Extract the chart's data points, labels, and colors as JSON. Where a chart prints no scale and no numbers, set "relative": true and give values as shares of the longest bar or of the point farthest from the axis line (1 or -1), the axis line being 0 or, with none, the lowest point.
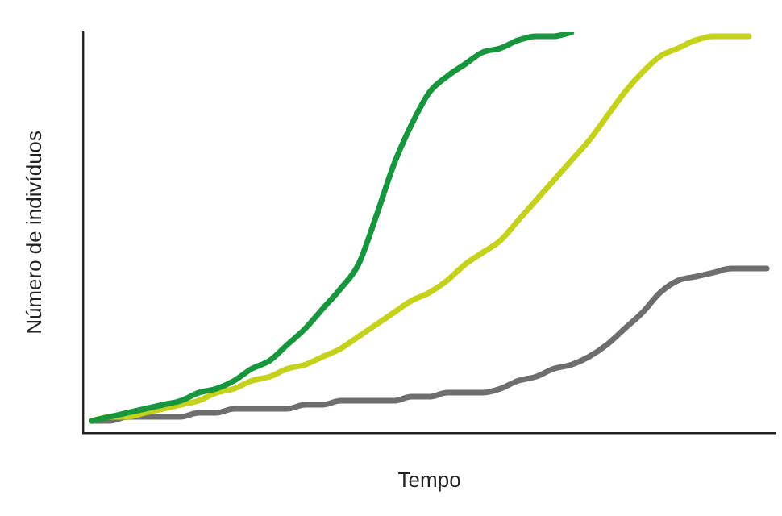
{
  "chart_data": {
    "type": "line",
    "relative": true,
    "xlabel": "Tempo",
    "ylabel": "Número de indivíduos",
    "grid": false,
    "legend": false,
    "marker": "none",
    "line_style": "solid",
    "categories": [
      null,
      null,
      null,
      null,
      null,
      null,
      null,
      null,
      null,
      null,
      null,
      null,
      null,
      null,
      null,
      null,
      null,
      null,
      null,
      null,
      null,
      null,
      null,
      null,
      null,
      null,
      null,
      null,
      null,
      null,
      null,
      null,
      null,
      null,
      null,
      null,
      null,
      null,
      null
    ],
    "series": [
      {
        "color": "#17963e",
        "values": [
          0.03,
          0.04,
          0.05,
          0.06,
          0.07,
          0.08,
          0.1,
          0.11,
          0.13,
          0.16,
          0.18,
          0.22,
          0.26,
          0.31,
          0.36,
          0.42,
          0.54,
          0.67,
          0.77,
          0.85,
          0.89,
          0.92,
          0.95,
          0.96,
          0.98,
          0.99,
          0.99,
          1,
          null,
          null,
          null,
          null,
          null,
          null,
          null,
          null,
          null,
          null,
          null
        ]
      },
      {
        "color": "#c5d21c",
        "values": [
          0.03,
          0.04,
          0.04,
          0.05,
          0.06,
          0.07,
          0.08,
          0.1,
          0.11,
          0.13,
          0.14,
          0.16,
          0.17,
          0.19,
          0.21,
          0.24,
          0.27,
          0.3,
          0.33,
          0.35,
          0.38,
          0.42,
          0.45,
          0.48,
          0.53,
          0.58,
          0.63,
          0.68,
          0.73,
          0.79,
          0.85,
          0.9,
          0.94,
          0.96,
          0.98,
          0.99,
          0.99,
          0.99,
          null
        ]
      },
      {
        "color": "#6e6e6e",
        "values": [
          0.03,
          0.03,
          0.04,
          0.04,
          0.04,
          0.04,
          0.05,
          0.05,
          0.06,
          0.06,
          0.06,
          0.06,
          0.07,
          0.07,
          0.08,
          0.08,
          0.08,
          0.08,
          0.09,
          0.09,
          0.1,
          0.1,
          0.1,
          0.11,
          0.13,
          0.14,
          0.16,
          0.17,
          0.19,
          0.22,
          0.26,
          0.3,
          0.35,
          0.38,
          0.39,
          0.4,
          0.41,
          0.41,
          0.41
        ]
      }
    ]
  }
}
